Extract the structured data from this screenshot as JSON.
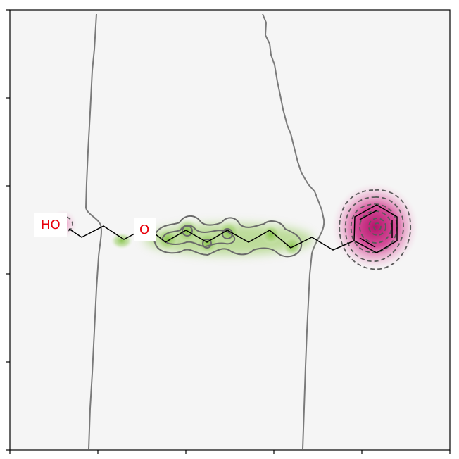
{
  "figure": {
    "kind": "molecule similarity map",
    "atom_labels": {
      "hydroxyl": "HO",
      "ether_oxygen": "O"
    },
    "colors": {
      "background": "#f5f5f5",
      "positive_contribution": "#8fc750",
      "negative_contribution": "#c51b7d",
      "contour_line": "#6e6e6e",
      "bond": "#000000",
      "heteroatom": "#e8000b"
    },
    "axes": {
      "ticks_visible": true,
      "tick_labels_visible": false
    }
  }
}
